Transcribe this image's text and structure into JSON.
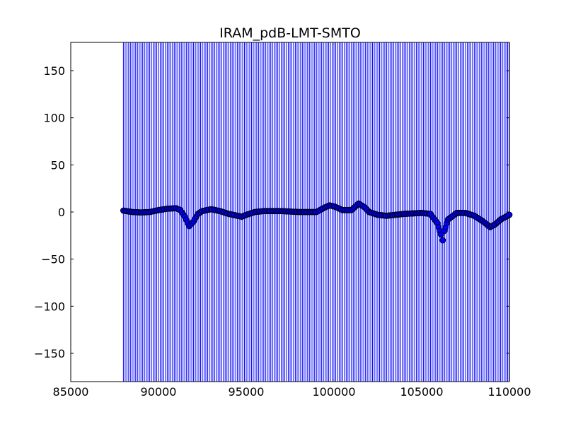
{
  "chart_data": {
    "type": "scatter",
    "title": "IRAM_pdB-LMT-SMTO",
    "xlabel": "",
    "ylabel": "",
    "xlim": [
      85000,
      110000
    ],
    "ylim": [
      -180,
      180
    ],
    "xticks": [
      85000,
      90000,
      95000,
      100000,
      105000,
      110000
    ],
    "xtick_labels": [
      "85000",
      "90000",
      "95000",
      "100000",
      "105000",
      "110000"
    ],
    "yticks": [
      150,
      100,
      50,
      0,
      -50,
      -100,
      -150
    ],
    "ytick_labels": [
      "150",
      "100",
      "50",
      "0",
      "−50",
      "−100",
      "−150"
    ],
    "grid": false,
    "marker": "circle",
    "marker_color": "#0000ff",
    "errorbar_color": "#0000ff",
    "errorbars": {
      "x_start": 88000,
      "x_end": 110000,
      "x_step": 100,
      "ymin": -180,
      "ymax": 180
    },
    "points": [
      [
        88000,
        1.5
      ],
      [
        88500,
        0
      ],
      [
        89000,
        -0.5
      ],
      [
        89500,
        0
      ],
      [
        90000,
        2
      ],
      [
        90500,
        3.5
      ],
      [
        91000,
        4
      ],
      [
        91250,
        2
      ],
      [
        91500,
        -5
      ],
      [
        91750,
        -15
      ],
      [
        92000,
        -10
      ],
      [
        92250,
        -2
      ],
      [
        92500,
        1
      ],
      [
        93000,
        3
      ],
      [
        93500,
        1
      ],
      [
        94000,
        -2
      ],
      [
        94500,
        -4
      ],
      [
        94750,
        -5
      ],
      [
        95000,
        -3
      ],
      [
        95500,
        0
      ],
      [
        96000,
        1
      ],
      [
        97000,
        1
      ],
      [
        98000,
        0
      ],
      [
        99000,
        0
      ],
      [
        99500,
        5
      ],
      [
        99750,
        7
      ],
      [
        100000,
        6
      ],
      [
        100500,
        2
      ],
      [
        101000,
        2
      ],
      [
        101400,
        9
      ],
      [
        101750,
        5
      ],
      [
        102000,
        0
      ],
      [
        102500,
        -3
      ],
      [
        103000,
        -4
      ],
      [
        104000,
        -2
      ],
      [
        105000,
        -1
      ],
      [
        105500,
        -2
      ],
      [
        105900,
        -12
      ],
      [
        106100,
        -24
      ],
      [
        106200,
        -30
      ],
      [
        106300,
        -20
      ],
      [
        106500,
        -8
      ],
      [
        107000,
        -1
      ],
      [
        107500,
        -1
      ],
      [
        108000,
        -4
      ],
      [
        108500,
        -10
      ],
      [
        108900,
        -16
      ],
      [
        109200,
        -13
      ],
      [
        109500,
        -8
      ],
      [
        110000,
        -3
      ]
    ]
  }
}
